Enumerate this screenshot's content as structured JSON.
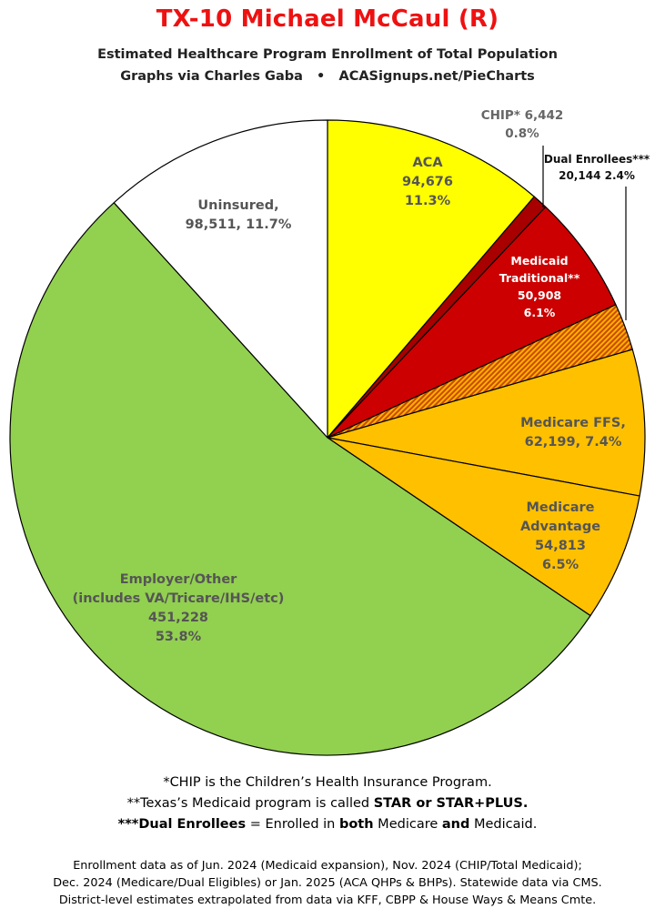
{
  "title": "TX-10 Michael McCaul (R)",
  "subtitle_line1": "Estimated Healthcare Program Enrollment of Total Population",
  "subtitle_line2": "Graphs via Charles Gaba   •   ACASignups.net/PieCharts",
  "chart_data": {
    "type": "pie",
    "start_angle_deg": 0,
    "direction": "clockwise",
    "slices": [
      {
        "name": "ACA",
        "value": 94676,
        "percent": 11.3,
        "color": "#ffff00",
        "label_lines": [
          "ACA",
          "94,676",
          "11.3%"
        ],
        "label_color": "#555555"
      },
      {
        "name": "CHIP",
        "value": 6442,
        "percent": 0.8,
        "color": "#a80000",
        "label_lines": [
          "CHIP* 6,442",
          "0.8%"
        ],
        "label_color": "#666666"
      },
      {
        "name": "Medicaid Traditional",
        "value": 50908,
        "percent": 6.1,
        "color": "#cc0000",
        "label_lines": [
          "Medicaid",
          "Traditional**",
          "50,908",
          "6.1%"
        ],
        "label_color": "#ffffff"
      },
      {
        "name": "Dual Enrollees",
        "value": 20144,
        "percent": 2.4,
        "color": "#e07a00",
        "pattern": "hatch",
        "label_lines": [
          "Dual Enrollees***",
          "20,144 2.4%"
        ],
        "label_color": "#111111"
      },
      {
        "name": "Medicare FFS",
        "value": 62199,
        "percent": 7.4,
        "color": "#ffc000",
        "label_lines": [
          "Medicare FFS,",
          "62,199, 7.4%"
        ],
        "label_color": "#555555"
      },
      {
        "name": "Medicare Advantage",
        "value": 54813,
        "percent": 6.5,
        "color": "#ffc000",
        "label_lines": [
          "Medicare",
          "Advantage",
          "54,813",
          "6.5%"
        ],
        "label_color": "#555555"
      },
      {
        "name": "Employer/Other",
        "value": 451228,
        "percent": 53.8,
        "color": "#92d050",
        "label_lines": [
          "Employer/Other",
          "(includes VA/Tricare/IHS/etc)",
          "451,228",
          "53.8%"
        ],
        "label_color": "#555555"
      },
      {
        "name": "Uninsured",
        "value": 98511,
        "percent": 11.7,
        "color": "#ffffff",
        "label_lines": [
          "Uninsured,",
          "98,511, 11.7%"
        ],
        "label_color": "#555555"
      }
    ]
  },
  "footnotes": [
    [
      "*CHIP is the Children’s Health Insurance Program."
    ],
    [
      "**Texas’s Medicaid program is called ",
      "STAR or STAR+PLUS."
    ],
    [
      "***Dual Enrollees",
      " = Enrolled in ",
      "both",
      " Medicare ",
      "and",
      " Medicaid."
    ]
  ],
  "sources": [
    "Enrollment data as of Jun. 2024 (Medicaid expansion), Nov. 2024 (CHIP/Total Medicaid);",
    "Dec. 2024 (Medicare/Dual Eligibles) or Jan. 2025 (ACA QHPs & BHPs). Statewide data via CMS.",
    "District-level estimates extrapolated from data via KFF, CBPP & House Ways & Means Cmte."
  ]
}
